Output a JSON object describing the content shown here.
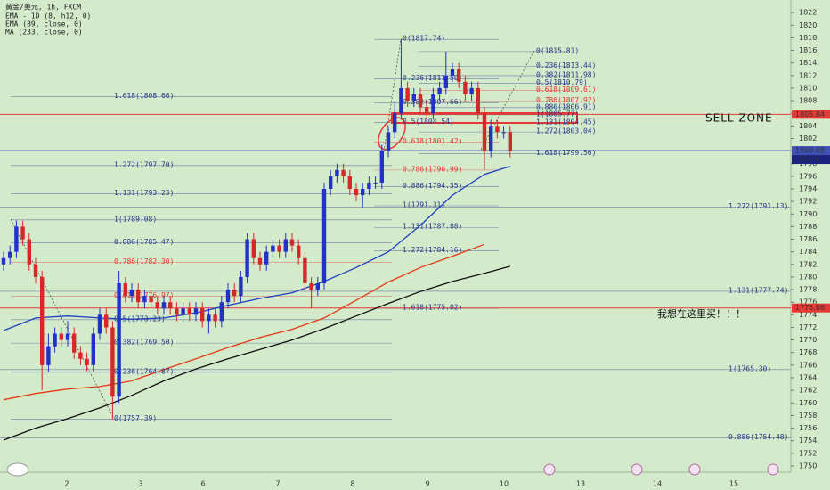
{
  "chart_data": {
    "type": "candlestick",
    "legend": [
      "黄金/美元, 1h, FXCM",
      "EMA - 1D (8, h12, 0)",
      "EMA (89, close, 0)",
      "MA (233, close, 0)"
    ],
    "ylim": [
      1749,
      1824
    ],
    "yticks": [
      1750,
      1752,
      1754,
      1756,
      1758,
      1760,
      1762,
      1764,
      1766,
      1768,
      1770,
      1772,
      1774,
      1776,
      1778,
      1780,
      1782,
      1784,
      1786,
      1788,
      1790,
      1792,
      1794,
      1796,
      1798,
      1800,
      1802,
      1804,
      1806,
      1808,
      1810,
      1812,
      1814,
      1816,
      1818,
      1820,
      1822
    ],
    "x_labels": [
      "2",
      "3",
      "6",
      "7",
      "8",
      "9",
      "10",
      "13",
      "14",
      "15"
    ],
    "up_color": "#2231c8",
    "down_color": "#d62828",
    "open": [
      1782,
      1783,
      1784,
      1788,
      1786,
      1782,
      1780,
      1766,
      1769,
      1771,
      1770,
      1771,
      1768,
      1767,
      1766,
      1771,
      1774,
      1772,
      1761,
      1779,
      1777,
      1778,
      1776,
      1777,
      1776,
      1775,
      1776,
      1775,
      1774,
      1775,
      1774,
      1775,
      1773,
      1774,
      1773,
      1776,
      1778,
      1777,
      1780,
      1786,
      1783,
      1782,
      1784,
      1785,
      1784,
      1786,
      1785,
      1783,
      1779,
      1778,
      1779,
      1794,
      1796,
      1797,
      1796,
      1794,
      1793,
      1794,
      1795,
      1795,
      1800,
      1803,
      1806,
      1810,
      1808,
      1809,
      1807,
      1806,
      1809,
      1810,
      1812,
      1813,
      1811,
      1809,
      1810,
      1806,
      1800,
      1804,
      1803,
      1803
    ],
    "high": [
      1784,
      1785,
      1789,
      1789,
      1787,
      1783,
      1781,
      1771,
      1772,
      1772,
      1773,
      1772,
      1769,
      1768,
      1772,
      1775,
      1775,
      1773,
      1781,
      1780,
      1779,
      1779,
      1778,
      1778,
      1777,
      1777,
      1777,
      1776,
      1776,
      1776,
      1776,
      1776,
      1775,
      1775,
      1777,
      1779,
      1779,
      1781,
      1787,
      1787,
      1784,
      1785,
      1786,
      1786,
      1787,
      1787,
      1786,
      1784,
      1780,
      1780,
      1795,
      1797,
      1798,
      1798,
      1797,
      1795,
      1795,
      1796,
      1796,
      1801,
      1804,
      1808,
      1817.74,
      1811,
      1810,
      1810,
      1808,
      1810,
      1811,
      1815.81,
      1814,
      1814,
      1812,
      1811,
      1811,
      1807,
      1805,
      1805,
      1804,
      1804
    ],
    "low": [
      1781,
      1782,
      1783,
      1785,
      1781,
      1779,
      1762,
      1765,
      1768,
      1769,
      1769,
      1767,
      1766,
      1765,
      1765,
      1770,
      1771,
      1757.39,
      1760,
      1776,
      1776,
      1775,
      1775,
      1775,
      1774,
      1774,
      1774,
      1773,
      1773,
      1773,
      1773,
      1772,
      1771,
      1772,
      1772,
      1775,
      1776,
      1776,
      1779,
      1782,
      1781,
      1781,
      1783,
      1783,
      1783,
      1784,
      1782,
      1778,
      1775,
      1777,
      1778,
      1793,
      1795,
      1795,
      1793,
      1792,
      1791,
      1793,
      1794,
      1794,
      1799,
      1802,
      1805,
      1807,
      1807,
      1806,
      1805,
      1805,
      1808,
      1809,
      1811,
      1810,
      1808,
      1808,
      1805,
      1797,
      1799,
      1802,
      1802,
      1799
    ],
    "close": [
      1783,
      1784,
      1788,
      1786,
      1782,
      1780,
      1766,
      1769,
      1771,
      1770,
      1771,
      1768,
      1767,
      1766,
      1771,
      1774,
      1772,
      1761,
      1779,
      1777,
      1778,
      1776,
      1777,
      1776,
      1775,
      1776,
      1775,
      1774,
      1775,
      1774,
      1775,
      1773,
      1774,
      1773,
      1776,
      1778,
      1777,
      1780,
      1786,
      1783,
      1782,
      1784,
      1785,
      1784,
      1786,
      1785,
      1783,
      1779,
      1778,
      1779,
      1794,
      1796,
      1797,
      1796,
      1794,
      1793,
      1794,
      1795,
      1795,
      1800,
      1803,
      1806,
      1810,
      1808,
      1809,
      1807,
      1806,
      1809,
      1810,
      1812,
      1813,
      1811,
      1809,
      1810,
      1806,
      1800,
      1804,
      1803,
      1803,
      1800
    ],
    "series": [
      {
        "name": "EMA - 1D (8, h12, 0)",
        "color": "#e53915",
        "x": [
          0,
          5,
          10,
          15,
          20,
          25,
          30,
          35,
          40,
          45,
          50,
          55,
          60,
          65,
          70,
          75
        ],
        "values": [
          1760.5,
          1761.5,
          1762.2,
          1762.6,
          1763.5,
          1765.3,
          1767,
          1768.8,
          1770.4,
          1771.7,
          1773.5,
          1776.3,
          1779.2,
          1781.5,
          1783.3,
          1785.2
        ]
      },
      {
        "name": "EMA (89, close, 0)",
        "color": "#1f3fbf",
        "x": [
          0,
          5,
          10,
          15,
          20,
          25,
          30,
          35,
          40,
          45,
          50,
          55,
          60,
          65,
          70,
          75,
          79
        ],
        "values": [
          1771.5,
          1773.5,
          1773.8,
          1773.5,
          1773.3,
          1773.5,
          1774.3,
          1775.5,
          1776.6,
          1777.5,
          1779.3,
          1781.5,
          1784,
          1788.2,
          1793,
          1796.3,
          1797.6
        ]
      },
      {
        "name": "MA (233, close, 0)",
        "color": "#111111",
        "x": [
          0,
          5,
          10,
          15,
          20,
          25,
          30,
          35,
          40,
          45,
          50,
          55,
          60,
          65,
          70,
          75,
          79
        ],
        "values": [
          1754.1,
          1756,
          1757.5,
          1759.2,
          1761.2,
          1763.5,
          1765.4,
          1767,
          1768.5,
          1770,
          1771.8,
          1773.8,
          1775.8,
          1777.7,
          1779.3,
          1780.6,
          1781.7
        ]
      }
    ],
    "price_levels": [
      {
        "value": 1805.84,
        "color": "#e53935"
      },
      {
        "value": 1800.08,
        "color": "#3f51b5"
      },
      {
        "value": 1775.08,
        "color": "#e53935"
      }
    ],
    "countdown": "50:34",
    "fib_color": "#2a3a8c",
    "fibs": [
      {
        "levels": [
          {
            "label": "1.618(1808.66)",
            "value": 1808.66
          },
          {
            "label": "1.272(1797.70)",
            "value": 1797.7
          },
          {
            "label": "1.131(1793.23)",
            "value": 1793.23
          },
          {
            "label": "1(1789.08)",
            "value": 1789.08
          },
          {
            "label": "0.886(1785.47)",
            "value": 1785.47
          },
          {
            "label": "0.786(1782.30)",
            "value": 1782.3,
            "color": "#e53935"
          },
          {
            "label": "0.618(1776.97)",
            "value": 1776.97,
            "color": "#e53935"
          },
          {
            "label": "0.5(1773.23)",
            "value": 1773.23
          },
          {
            "label": "0.382(1769.50)",
            "value": 1769.5
          },
          {
            "label": "0.236(1764.87)",
            "value": 1764.87
          },
          {
            "label": "0(1757.39)",
            "value": 1757.39
          }
        ]
      },
      {
        "levels": [
          {
            "label": "0(1817.74)",
            "value": 1817.74
          },
          {
            "label": "0.236(1811.50)",
            "value": 1811.5
          },
          {
            "label": "0.382(1807.66)",
            "value": 1807.66
          },
          {
            "label": "0.5(1804.54)",
            "value": 1804.54
          },
          {
            "label": "0.618(1801.42)",
            "value": 1801.42,
            "color": "#e53935"
          },
          {
            "label": "0.786(1796.99)",
            "value": 1796.99,
            "color": "#e53935"
          },
          {
            "label": "0.886(1794.35)",
            "value": 1794.35
          },
          {
            "label": "1(1791.31)",
            "value": 1791.31
          },
          {
            "label": "1.131(1787.88)",
            "value": 1787.88
          },
          {
            "label": "1.272(1784.16)",
            "value": 1784.16
          },
          {
            "label": "1.618(1775.02)",
            "value": 1775.02
          }
        ]
      },
      {
        "levels": [
          {
            "label": "0(1815.81)",
            "value": 1815.81
          },
          {
            "label": "0.236(1813.44)",
            "value": 1813.44
          },
          {
            "label": "0.382(1811.98)",
            "value": 1811.98
          },
          {
            "label": "0.5(1810.79)",
            "value": 1810.79
          },
          {
            "label": "0.618(1809.61)",
            "value": 1809.61,
            "color": "#e53935"
          },
          {
            "label": "0.786(1807.92)",
            "value": 1807.92,
            "color": "#e53935"
          },
          {
            "label": "0.886(1806.91)",
            "value": 1806.91
          },
          {
            "label": "1(1805.77)",
            "value": 1805.77
          },
          {
            "label": "1.131(1804.45)",
            "value": 1804.45
          },
          {
            "label": "1.272(1803.04)",
            "value": 1803.04
          },
          {
            "label": "1.618(1799.56)",
            "value": 1799.56
          }
        ]
      },
      {
        "levels": [
          {
            "label": "1.272(1791.13)",
            "value": 1791.13
          },
          {
            "label": "1.131(1777.74)",
            "value": 1777.74
          },
          {
            "label": "1(1765.30)",
            "value": 1765.3
          },
          {
            "label": "0.886(1754.48)",
            "value": 1754.48
          }
        ]
      }
    ],
    "annotations": [
      "SELL ZONE",
      "我想在这里买！！！"
    ]
  }
}
